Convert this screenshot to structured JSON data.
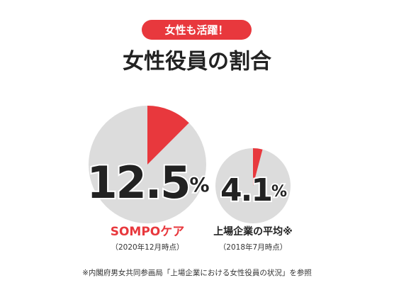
{
  "badge": "女性も活躍！",
  "title": "女性役員の割合",
  "chart_data": [
    {
      "type": "pie",
      "name": "SOMPOケア",
      "subtitle": "（2020年12月時点）",
      "values": [
        12.5
      ],
      "value_labels": [
        "12.5%"
      ],
      "color": "#e8383d",
      "background_color": "#dcdcdc",
      "name_color": "#e8383d"
    },
    {
      "type": "pie",
      "name": "上場企業の平均※",
      "subtitle": "（2018年7月時点）",
      "values": [
        4.1
      ],
      "value_labels": [
        "4.1%"
      ],
      "color": "#e8383d",
      "background_color": "#dcdcdc",
      "name_color": "#222222"
    }
  ],
  "footnote": "※内閣府男女共同参画局「上場企業における女性役員の状況」を参照"
}
